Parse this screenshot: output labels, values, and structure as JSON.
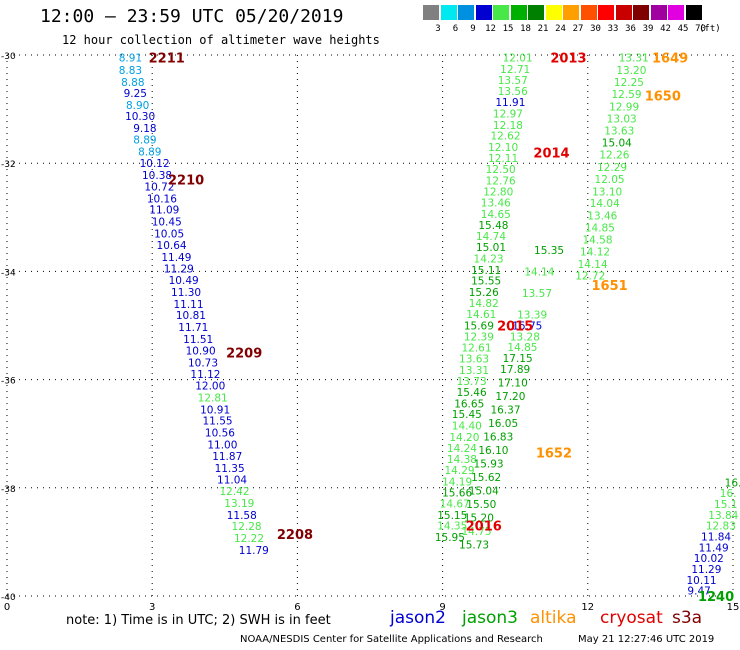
{
  "header": {
    "title": "12:00 — 23:59 UTC 05/20/2019",
    "subtitle": "12 hour collection of altimeter wave heights"
  },
  "colorbar": {
    "unit": "(ft)",
    "swatches": [
      {
        "label": "3",
        "color": "#808080"
      },
      {
        "label": "6",
        "color": "#00e8f0"
      },
      {
        "label": "9",
        "color": "#0090e0"
      },
      {
        "label": "12",
        "color": "#0000d0"
      },
      {
        "label": "15",
        "color": "#48e848"
      },
      {
        "label": "18",
        "color": "#00b000"
      },
      {
        "label": "21",
        "color": "#008000"
      },
      {
        "label": "24",
        "color": "#ffff00"
      },
      {
        "label": "27",
        "color": "#ffa000"
      },
      {
        "label": "30",
        "color": "#ff5000"
      },
      {
        "label": "33",
        "color": "#ff0000"
      },
      {
        "label": "36",
        "color": "#c80000"
      },
      {
        "label": "39",
        "color": "#800000"
      },
      {
        "label": "42",
        "color": "#a000a0"
      },
      {
        "label": "45",
        "color": "#e000e0"
      },
      {
        "label": "70",
        "color": "#000000"
      }
    ]
  },
  "map": {
    "x_ticks": [
      "0",
      "3",
      "6",
      "9",
      "12",
      "15"
    ],
    "y_ticks": [
      "-30",
      "-32",
      "-34",
      "-36",
      "-38",
      "-40"
    ],
    "colors": {
      "c1": "#00a0e0",
      "c2": "#0000d0",
      "c3": "#48e848",
      "c4": "#00a000",
      "time_dark": "#800000",
      "time_red": "#e00000",
      "time_orange": "#ff9000"
    },
    "track_jason2": [
      {
        "x": 2.55,
        "y": -30.05,
        "v": "8.91",
        "c": "c1"
      },
      {
        "x": 2.55,
        "y": -30.28,
        "v": "8.83",
        "c": "c1"
      },
      {
        "x": 2.6,
        "y": -30.5,
        "v": "8.88",
        "c": "c1"
      },
      {
        "x": 2.65,
        "y": -30.7,
        "v": "9.25",
        "c": "c2"
      },
      {
        "x": 2.7,
        "y": -30.92,
        "v": "8.90",
        "c": "c1"
      },
      {
        "x": 2.75,
        "y": -31.13,
        "v": "10.30",
        "c": "c2"
      },
      {
        "x": 2.85,
        "y": -31.35,
        "v": "9.18",
        "c": "c2"
      },
      {
        "x": 2.85,
        "y": -31.56,
        "v": "8.89",
        "c": "c1"
      },
      {
        "x": 2.95,
        "y": -31.78,
        "v": "8.89",
        "c": "c1"
      },
      {
        "x": 3.05,
        "y": -32.0,
        "v": "10.12",
        "c": "c2"
      },
      {
        "x": 3.1,
        "y": -32.22,
        "v": "10.38",
        "c": "c2"
      },
      {
        "x": 3.15,
        "y": -32.43,
        "v": "10.72",
        "c": "c2"
      },
      {
        "x": 3.2,
        "y": -32.65,
        "v": "10.16",
        "c": "c2"
      },
      {
        "x": 3.25,
        "y": -32.86,
        "v": "11.09",
        "c": "c2"
      },
      {
        "x": 3.3,
        "y": -33.08,
        "v": "10.45",
        "c": "c2"
      },
      {
        "x": 3.35,
        "y": -33.3,
        "v": "10.05",
        "c": "c2"
      },
      {
        "x": 3.4,
        "y": -33.51,
        "v": "10.64",
        "c": "c2"
      },
      {
        "x": 3.5,
        "y": -33.73,
        "v": "11.49",
        "c": "c2"
      },
      {
        "x": 3.55,
        "y": -33.95,
        "v": "11.29",
        "c": "c2"
      },
      {
        "x": 3.65,
        "y": -34.16,
        "v": "10.49",
        "c": "c2"
      },
      {
        "x": 3.7,
        "y": -34.38,
        "v": "11.30",
        "c": "c2"
      },
      {
        "x": 3.75,
        "y": -34.6,
        "v": "11.11",
        "c": "c2"
      },
      {
        "x": 3.8,
        "y": -34.81,
        "v": "10.81",
        "c": "c2"
      },
      {
        "x": 3.85,
        "y": -35.03,
        "v": "11.71",
        "c": "c2"
      },
      {
        "x": 3.95,
        "y": -35.25,
        "v": "11.51",
        "c": "c2"
      },
      {
        "x": 4.0,
        "y": -35.46,
        "v": "10.90",
        "c": "c2"
      },
      {
        "x": 4.05,
        "y": -35.68,
        "v": "10.73",
        "c": "c2"
      },
      {
        "x": 4.1,
        "y": -35.9,
        "v": "11.12",
        "c": "c2"
      },
      {
        "x": 4.2,
        "y": -36.11,
        "v": "12.00",
        "c": "c2"
      },
      {
        "x": 4.25,
        "y": -36.33,
        "v": "12.81",
        "c": "c3"
      },
      {
        "x": 4.3,
        "y": -36.55,
        "v": "10.91",
        "c": "c2"
      },
      {
        "x": 4.35,
        "y": -36.76,
        "v": "11.55",
        "c": "c2"
      },
      {
        "x": 4.4,
        "y": -36.98,
        "v": "10.56",
        "c": "c2"
      },
      {
        "x": 4.45,
        "y": -37.2,
        "v": "11.00",
        "c": "c2"
      },
      {
        "x": 4.55,
        "y": -37.41,
        "v": "11.87",
        "c": "c2"
      },
      {
        "x": 4.6,
        "y": -37.63,
        "v": "11.35",
        "c": "c2"
      },
      {
        "x": 4.65,
        "y": -37.85,
        "v": "11.04",
        "c": "c2"
      },
      {
        "x": 4.7,
        "y": -38.06,
        "v": "12.42",
        "c": "c3"
      },
      {
        "x": 4.8,
        "y": -38.28,
        "v": "13.19",
        "c": "c3"
      },
      {
        "x": 4.85,
        "y": -38.5,
        "v": "11.58",
        "c": "c2"
      },
      {
        "x": 4.95,
        "y": -38.71,
        "v": "12.28",
        "c": "c3"
      },
      {
        "x": 5.0,
        "y": -38.93,
        "v": "12.22",
        "c": "c3"
      },
      {
        "x": 5.1,
        "y": -39.15,
        "v": "11.79",
        "c": "c2"
      }
    ],
    "track_jason3": [
      {
        "x": 10.55,
        "y": -30.05,
        "v": "12.01",
        "c": "c3"
      },
      {
        "x": 10.5,
        "y": -30.26,
        "v": "12.71",
        "c": "c3"
      },
      {
        "x": 10.45,
        "y": -30.46,
        "v": "13.57",
        "c": "c3"
      },
      {
        "x": 10.45,
        "y": -30.67,
        "v": "13.56",
        "c": "c3"
      },
      {
        "x": 10.4,
        "y": -30.87,
        "v": "11.91",
        "c": "c2"
      },
      {
        "x": 10.35,
        "y": -31.08,
        "v": "12.97",
        "c": "c3"
      },
      {
        "x": 10.35,
        "y": -31.29,
        "v": "12.18",
        "c": "c3"
      },
      {
        "x": 10.3,
        "y": -31.49,
        "v": "12.62",
        "c": "c3"
      },
      {
        "x": 10.25,
        "y": -31.7,
        "v": "12.10",
        "c": "c3"
      },
      {
        "x": 10.25,
        "y": -31.9,
        "v": "12.11",
        "c": "c3"
      },
      {
        "x": 10.2,
        "y": -32.11,
        "v": "12.50",
        "c": "c3"
      },
      {
        "x": 10.2,
        "y": -32.32,
        "v": "12.76",
        "c": "c3"
      },
      {
        "x": 10.15,
        "y": -32.52,
        "v": "12.80",
        "c": "c3"
      },
      {
        "x": 10.1,
        "y": -32.73,
        "v": "13.46",
        "c": "c3"
      },
      {
        "x": 10.1,
        "y": -32.94,
        "v": "14.65",
        "c": "c3"
      },
      {
        "x": 10.05,
        "y": -33.14,
        "v": "15.48",
        "c": "c4"
      },
      {
        "x": 10.0,
        "y": -33.35,
        "v": "14.74",
        "c": "c3"
      },
      {
        "x": 10.0,
        "y": -33.55,
        "v": "15.01",
        "c": "c4"
      },
      {
        "x": 9.95,
        "y": -33.76,
        "v": "14.23",
        "c": "c3"
      },
      {
        "x": 9.9,
        "y": -33.97,
        "v": "15.11",
        "c": "c4"
      },
      {
        "x": 9.9,
        "y": -34.17,
        "v": "15.55",
        "c": "c4"
      },
      {
        "x": 9.85,
        "y": -34.38,
        "v": "15.26",
        "c": "c4"
      },
      {
        "x": 9.85,
        "y": -34.58,
        "v": "14.82",
        "c": "c3"
      },
      {
        "x": 9.8,
        "y": -34.79,
        "v": "14.61",
        "c": "c3"
      },
      {
        "x": 9.75,
        "y": -35.0,
        "v": "15.69",
        "c": "c4"
      },
      {
        "x": 9.75,
        "y": -35.2,
        "v": "12.39",
        "c": "c3"
      },
      {
        "x": 9.7,
        "y": -35.41,
        "v": "12.61",
        "c": "c3"
      },
      {
        "x": 9.65,
        "y": -35.61,
        "v": "13.63",
        "c": "c3"
      },
      {
        "x": 9.65,
        "y": -35.82,
        "v": "13.31",
        "c": "c3"
      },
      {
        "x": 9.6,
        "y": -36.03,
        "v": "13.73",
        "c": "c3"
      },
      {
        "x": 9.6,
        "y": -36.23,
        "v": "15.46",
        "c": "c4"
      },
      {
        "x": 9.55,
        "y": -36.44,
        "v": "16.65",
        "c": "c4"
      },
      {
        "x": 9.5,
        "y": -36.64,
        "v": "15.45",
        "c": "c4"
      },
      {
        "x": 9.5,
        "y": -36.85,
        "v": "14.40",
        "c": "c3"
      },
      {
        "x": 9.45,
        "y": -37.06,
        "v": "14.20",
        "c": "c3"
      },
      {
        "x": 9.4,
        "y": -37.26,
        "v": "14.24",
        "c": "c3"
      },
      {
        "x": 9.4,
        "y": -37.47,
        "v": "14.38",
        "c": "c3"
      },
      {
        "x": 9.35,
        "y": -37.67,
        "v": "14.29",
        "c": "c3"
      },
      {
        "x": 9.3,
        "y": -37.88,
        "v": "14.19",
        "c": "c3"
      },
      {
        "x": 9.3,
        "y": -38.09,
        "v": "15.66",
        "c": "c4"
      },
      {
        "x": 9.25,
        "y": -38.29,
        "v": "14.67",
        "c": "c3"
      },
      {
        "x": 9.2,
        "y": -38.5,
        "v": "15.15",
        "c": "c4"
      },
      {
        "x": 9.2,
        "y": -38.7,
        "v": "14.35",
        "c": "c3"
      },
      {
        "x": 9.15,
        "y": -38.91,
        "v": "15.95",
        "c": "c4"
      }
    ],
    "track_jason3b": [
      {
        "x": 11.2,
        "y": -33.6,
        "v": "15.35",
        "c": "c4"
      },
      {
        "x": 11.0,
        "y": -34.0,
        "v": "14.14",
        "c": "c3"
      },
      {
        "x": 10.95,
        "y": -34.4,
        "v": "13.57",
        "c": "c3"
      },
      {
        "x": 10.85,
        "y": -34.8,
        "v": "13.39",
        "c": "c3"
      },
      {
        "x": 10.75,
        "y": -35.0,
        "v": "15.75",
        "c": "c2"
      },
      {
        "x": 10.7,
        "y": -35.2,
        "v": "13.28",
        "c": "c3"
      },
      {
        "x": 10.65,
        "y": -35.4,
        "v": "14.85",
        "c": "c3"
      },
      {
        "x": 10.55,
        "y": -35.6,
        "v": "17.15",
        "c": "c4"
      },
      {
        "x": 10.5,
        "y": -35.8,
        "v": "17.89",
        "c": "c4"
      },
      {
        "x": 10.45,
        "y": -36.05,
        "v": "17.10",
        "c": "c4"
      },
      {
        "x": 10.4,
        "y": -36.3,
        "v": "17.20",
        "c": "c4"
      },
      {
        "x": 10.3,
        "y": -36.55,
        "v": "16.37",
        "c": "c4"
      },
      {
        "x": 10.25,
        "y": -36.8,
        "v": "16.05",
        "c": "c4"
      },
      {
        "x": 10.15,
        "y": -37.05,
        "v": "16.83",
        "c": "c4"
      },
      {
        "x": 10.05,
        "y": -37.3,
        "v": "16.10",
        "c": "c4"
      },
      {
        "x": 9.95,
        "y": -37.55,
        "v": "15.93",
        "c": "c4"
      },
      {
        "x": 9.9,
        "y": -37.8,
        "v": "15.62",
        "c": "c4"
      },
      {
        "x": 9.85,
        "y": -38.05,
        "v": "15.04",
        "c": "c4"
      },
      {
        "x": 9.8,
        "y": -38.3,
        "v": "15.50",
        "c": "c4"
      },
      {
        "x": 9.75,
        "y": -38.55,
        "v": "15.20",
        "c": "c4"
      },
      {
        "x": 9.7,
        "y": -38.8,
        "v": "14.75",
        "c": "c3"
      },
      {
        "x": 9.65,
        "y": -39.05,
        "v": "15.73",
        "c": "c4"
      }
    ],
    "track_cryosat": [
      {
        "x": 12.95,
        "y": -30.05,
        "v": "13.31",
        "c": "c3"
      },
      {
        "x": 12.9,
        "y": -30.28,
        "v": "13.20",
        "c": "c3"
      },
      {
        "x": 12.85,
        "y": -30.5,
        "v": "12.25",
        "c": "c3"
      },
      {
        "x": 12.8,
        "y": -30.72,
        "v": "12.59",
        "c": "c3"
      },
      {
        "x": 12.75,
        "y": -30.95,
        "v": "12.99",
        "c": "c3"
      },
      {
        "x": 12.7,
        "y": -31.17,
        "v": "13.03",
        "c": "c3"
      },
      {
        "x": 12.65,
        "y": -31.4,
        "v": "13.63",
        "c": "c3"
      },
      {
        "x": 12.6,
        "y": -31.62,
        "v": "15.04",
        "c": "c4"
      },
      {
        "x": 12.55,
        "y": -31.84,
        "v": "12.26",
        "c": "c3"
      },
      {
        "x": 12.5,
        "y": -32.07,
        "v": "12.29",
        "c": "c3"
      },
      {
        "x": 12.45,
        "y": -32.29,
        "v": "12.05",
        "c": "c3"
      },
      {
        "x": 12.4,
        "y": -32.52,
        "v": "13.10",
        "c": "c3"
      },
      {
        "x": 12.35,
        "y": -32.74,
        "v": "14.04",
        "c": "c3"
      },
      {
        "x": 12.3,
        "y": -32.97,
        "v": "13.46",
        "c": "c3"
      },
      {
        "x": 12.25,
        "y": -33.19,
        "v": "14.85",
        "c": "c3"
      },
      {
        "x": 12.2,
        "y": -33.41,
        "v": "14.58",
        "c": "c3"
      },
      {
        "x": 12.15,
        "y": -33.63,
        "v": "14.12",
        "c": "c3"
      },
      {
        "x": 12.1,
        "y": -33.86,
        "v": "14.14",
        "c": "c3"
      },
      {
        "x": 12.05,
        "y": -34.08,
        "v": "12.72",
        "c": "c3"
      }
    ],
    "track_s3a": [
      {
        "x": 15.0,
        "y": -37.9,
        "v": "16.",
        "c": "c4"
      },
      {
        "x": 14.9,
        "y": -38.1,
        "v": "16.",
        "c": "c3"
      },
      {
        "x": 14.85,
        "y": -38.3,
        "v": "15.1",
        "c": "c3"
      },
      {
        "x": 14.8,
        "y": -38.5,
        "v": "13.84",
        "c": "c3"
      },
      {
        "x": 14.75,
        "y": -38.7,
        "v": "12.83",
        "c": "c3"
      },
      {
        "x": 14.65,
        "y": -38.9,
        "v": "11.84",
        "c": "c2"
      },
      {
        "x": 14.6,
        "y": -39.1,
        "v": "11.49",
        "c": "c2"
      },
      {
        "x": 14.5,
        "y": -39.3,
        "v": "10.02",
        "c": "c2"
      },
      {
        "x": 14.45,
        "y": -39.5,
        "v": "11.29",
        "c": "c2"
      },
      {
        "x": 14.35,
        "y": -39.7,
        "v": "10.11",
        "c": "c2"
      },
      {
        "x": 14.3,
        "y": -39.9,
        "v": "9.47",
        "c": "c2"
      }
    ],
    "time_labels": [
      {
        "x": 3.3,
        "y": -30.05,
        "t": "2211",
        "c": "time_dark"
      },
      {
        "x": 3.7,
        "y": -32.3,
        "t": "2210",
        "c": "time_dark"
      },
      {
        "x": 4.9,
        "y": -35.5,
        "t": "2209",
        "c": "time_dark"
      },
      {
        "x": 5.95,
        "y": -38.85,
        "t": "2208",
        "c": "time_dark"
      },
      {
        "x": 11.6,
        "y": -30.05,
        "t": "2013",
        "c": "time_red"
      },
      {
        "x": 11.25,
        "y": -31.8,
        "t": "2014",
        "c": "time_red"
      },
      {
        "x": 10.5,
        "y": -35.0,
        "t": "2015",
        "c": "time_red"
      },
      {
        "x": 9.85,
        "y": -38.7,
        "t": "2016",
        "c": "time_red"
      },
      {
        "x": 13.7,
        "y": -30.05,
        "t": "1649",
        "c": "time_orange"
      },
      {
        "x": 13.55,
        "y": -30.75,
        "t": "1650",
        "c": "time_orange"
      },
      {
        "x": 12.45,
        "y": -34.25,
        "t": "1651",
        "c": "time_orange"
      },
      {
        "x": 11.3,
        "y": -37.35,
        "t": "1652",
        "c": "time_orange"
      },
      {
        "x": 14.65,
        "y": -40.0,
        "t": "1240",
        "c": "c4"
      }
    ]
  },
  "footer": {
    "note": "note:  1) Time is in UTC;  2) SWH is in feet",
    "satellites": [
      {
        "name": "jason2",
        "color": "#0000d0"
      },
      {
        "name": "jason3",
        "color": "#00a000"
      },
      {
        "name": "altika",
        "color": "#ff9000"
      },
      {
        "name": "cryosat",
        "color": "#e00000"
      },
      {
        "name": "s3a",
        "color": "#800000"
      }
    ],
    "credit": "NOAA/NESDIS Center for Satellite Applications and Research",
    "timestamp": "May 21 12:27:46 UTC 2019"
  }
}
